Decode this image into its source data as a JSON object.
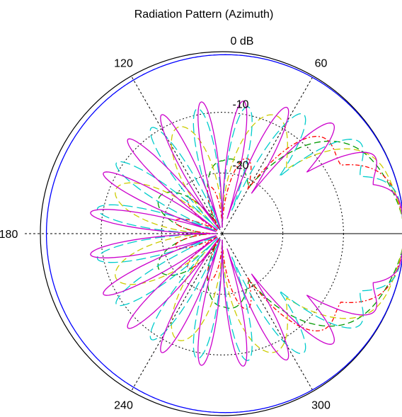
{
  "chart_data": {
    "type": "polar",
    "title": "Radiation Pattern (Azimuth)",
    "radial_unit": "dB",
    "radial_range": [
      -30,
      0
    ],
    "radial_ticks": [
      {
        "value": 0,
        "label": "0 dB"
      },
      {
        "value": -10,
        "label": "-10"
      },
      {
        "value": -20,
        "label": "-20"
      }
    ],
    "angle_direction": "counter-clockwise",
    "zero_angle": "right",
    "angle_tick_labels": [
      {
        "angle": 60,
        "label": "60"
      },
      {
        "angle": 120,
        "label": "120"
      },
      {
        "angle": 180,
        "label": "180"
      },
      {
        "angle": 240,
        "label": "240"
      },
      {
        "angle": 300,
        "label": "300"
      }
    ],
    "grid": true,
    "series": [
      {
        "color": "#0000ff",
        "style": "solid",
        "lobes": 1,
        "main_lobe_width": 1.0,
        "back_level_db": -1,
        "min_level_db": -2
      },
      {
        "color": "#009900",
        "style": "dashed",
        "lobes": 3,
        "main_lobe_width": 0.75,
        "back_level_db": -18,
        "min_level_db": -28
      },
      {
        "color": "#ff0000",
        "style": "dash-dot",
        "lobes": 6,
        "main_lobe_width": 0.85,
        "back_level_db": -22,
        "min_level_db": -29
      },
      {
        "color": "#cccc00",
        "style": "dashed",
        "lobes": 4,
        "main_lobe_width": 0.6,
        "back_level_db": -11,
        "min_level_db": -28
      },
      {
        "color": "#00cccc",
        "style": "long-dash",
        "lobes": 8,
        "main_lobe_width": 0.5,
        "back_level_db": -9,
        "min_level_db": -29
      },
      {
        "color": "#cc00cc",
        "style": "solid",
        "lobes": 10,
        "main_lobe_width": 0.45,
        "back_level_db": -8,
        "min_level_db": -29
      }
    ]
  }
}
